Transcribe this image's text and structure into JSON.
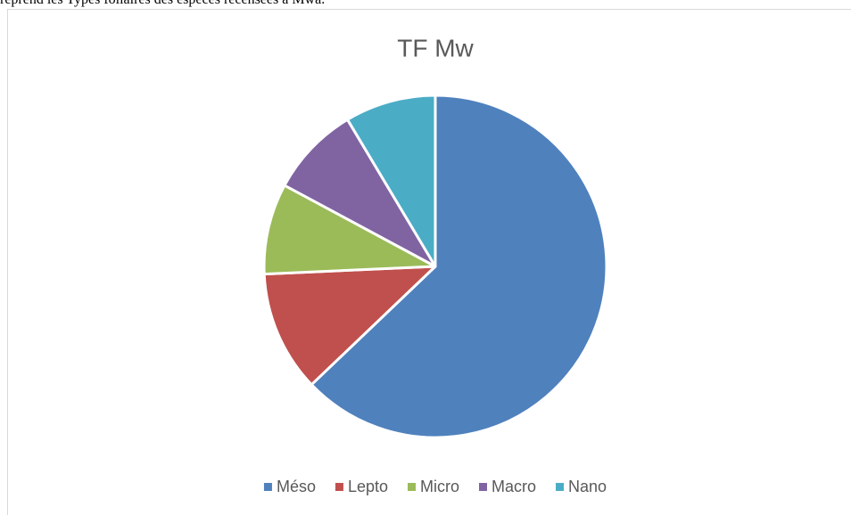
{
  "document_text": "reprend les Types foliaires des espèces recensées à Mwa.",
  "chart_data": {
    "type": "pie",
    "title": "TF Mw",
    "categories": [
      "Méso",
      "Lepto",
      "Micro",
      "Macro",
      "Nano"
    ],
    "values": [
      22,
      4,
      3,
      3,
      3
    ],
    "colors": [
      "#4f81bd",
      "#c0504d",
      "#9bbb59",
      "#8064a2",
      "#4bacc6"
    ],
    "legend": "bottom"
  }
}
